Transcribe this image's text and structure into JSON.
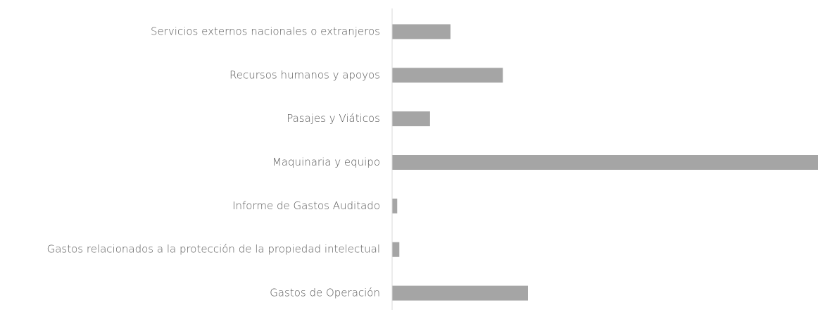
{
  "chart_data": {
    "type": "bar",
    "orientation": "horizontal",
    "categories": [
      "Servicios externos nacionales o extranjeros",
      "Recursos humanos y apoyos",
      "Pasajes y Viáticos",
      "Maquinaria y equipo",
      "Informe de Gastos Auditado",
      "Gastos relacionados a la protección de la propiedad intelectual",
      "Gastos de Operación"
    ],
    "values": [
      13.7,
      26,
      8.9,
      100,
      1.2,
      1.7,
      31.9
    ],
    "color": "#a5a5a5",
    "xlim": [
      0,
      100
    ]
  }
}
